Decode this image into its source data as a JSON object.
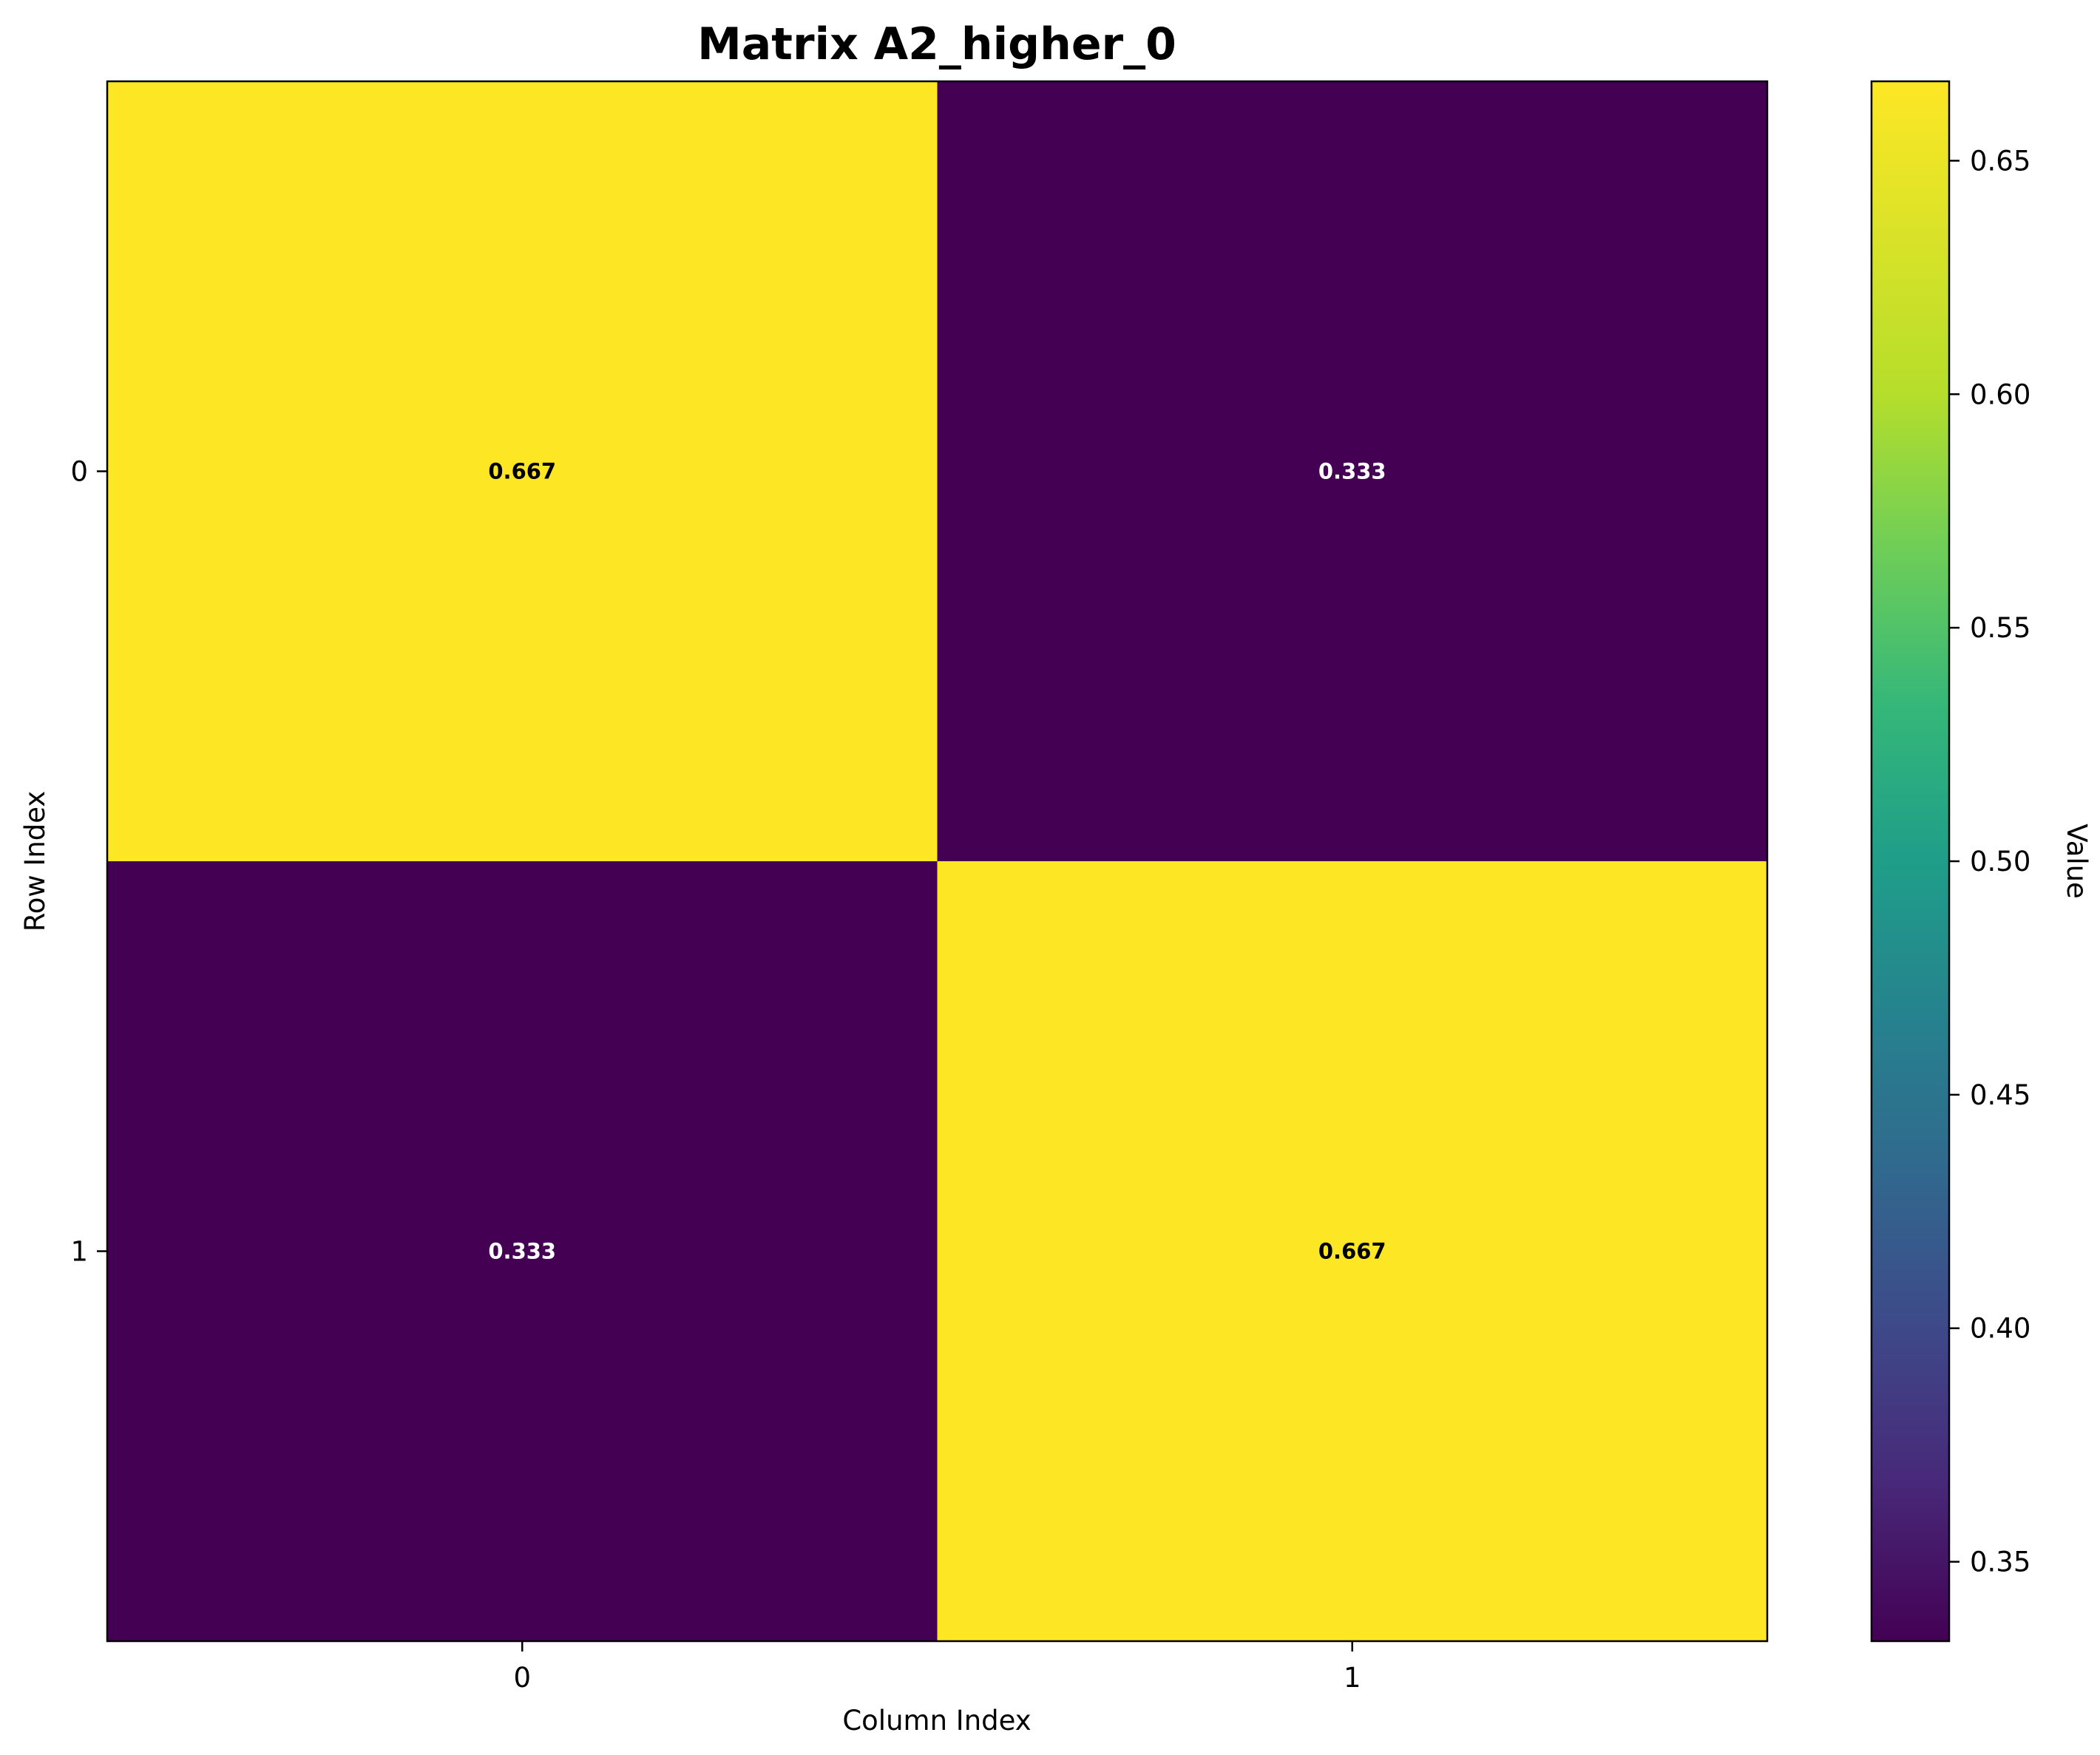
{
  "chart_data": {
    "type": "heatmap",
    "title": "Matrix A2_higher_0",
    "xlabel": "Column Index",
    "ylabel": "Row Index",
    "x_ticks": [
      "0",
      "1"
    ],
    "y_ticks": [
      "0",
      "1"
    ],
    "matrix": [
      [
        0.667,
        0.333
      ],
      [
        0.333,
        0.667
      ]
    ],
    "cell_labels": [
      [
        "0.667",
        "0.333"
      ],
      [
        "0.333",
        "0.667"
      ]
    ],
    "colormap": "viridis",
    "colorbar": {
      "label": "Value",
      "range": [
        0.333,
        0.667
      ],
      "ticks": [
        0.35,
        0.4,
        0.45,
        0.5,
        0.55,
        0.6,
        0.65
      ],
      "tick_labels": [
        "0.35",
        "0.40",
        "0.45",
        "0.50",
        "0.55",
        "0.60",
        "0.65"
      ]
    },
    "colors": {
      "high": "#fde725",
      "low": "#440154"
    }
  }
}
